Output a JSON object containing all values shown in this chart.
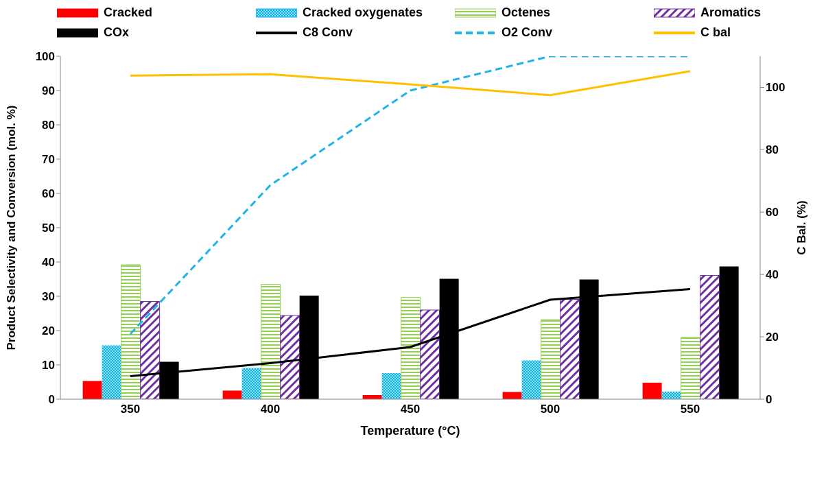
{
  "chart_data": {
    "type": "bar",
    "xlabel": "Temperature (°C)",
    "ylabel": "Product Selectivity and Conversion (mol. %)",
    "y2label": "C Bal. (%)",
    "categories": [
      "350",
      "400",
      "450",
      "500",
      "550"
    ],
    "series": [
      {
        "name": "Cracked",
        "color": "#ff0000",
        "values": [
          5.3,
          2.5,
          1.2,
          2.1,
          4.8
        ]
      },
      {
        "name": "Cracked oxygenates",
        "color": "#00b0f0",
        "values": [
          15.7,
          9.1,
          7.6,
          11.3,
          2.2
        ]
      },
      {
        "name": "Octenes",
        "color": "#92d050",
        "values": [
          39.2,
          33.5,
          29.7,
          23.2,
          18.0
        ]
      },
      {
        "name": "Aromatics",
        "color": "#7030a0",
        "values": [
          28.5,
          24.4,
          26.0,
          29.1,
          36.1
        ]
      },
      {
        "name": "COx",
        "color": "#000000",
        "values": [
          10.9,
          30.2,
          35.1,
          34.9,
          38.7
        ]
      },
      {
        "name": "C8 Conv",
        "type": "line",
        "color": "#000000",
        "line_style": "solid",
        "values": [
          6.7,
          10.5,
          15.2,
          29.0,
          32.1
        ]
      },
      {
        "name": "O2 Conv",
        "type": "line",
        "color": "#1fb4e8",
        "line_style": "dashed",
        "values": [
          19,
          62.4,
          90,
          100,
          100
        ]
      },
      {
        "name": "C bal",
        "type": "line",
        "color": "#ffc000",
        "line_style": "solid",
        "axis": "y2",
        "values": [
          103.8,
          104.2,
          101,
          97.5,
          105.2
        ]
      }
    ],
    "ylim": [
      0,
      100
    ],
    "yticks": [
      0,
      10,
      20,
      30,
      40,
      50,
      60,
      70,
      80,
      90,
      100
    ],
    "y2lim": [
      0,
      110
    ],
    "y2ticks": [
      0,
      20,
      40,
      60,
      80,
      100
    ],
    "grid": false,
    "legend": "top",
    "marker": "none"
  }
}
